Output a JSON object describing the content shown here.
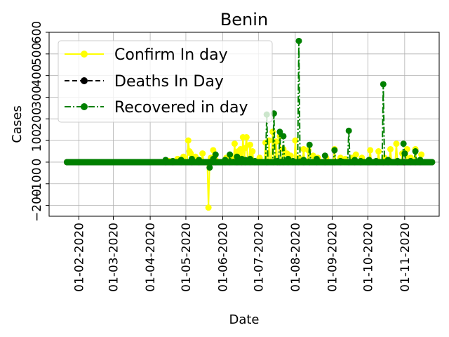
{
  "chart_data": {
    "type": "line",
    "title": "Benin",
    "xlabel": "Date",
    "ylabel": "Cases",
    "x_range": [
      "2020-01-07",
      "2020-11-30"
    ],
    "y_range": [
      -250,
      600
    ],
    "grid": true,
    "legend_position": "top-left",
    "x_ticks": [
      "01-02-2020",
      "01-03-2020",
      "01-04-2020",
      "01-05-2020",
      "01-06-2020",
      "01-07-2020",
      "01-08-2020",
      "01-09-2020",
      "01-10-2020",
      "01-11-2020"
    ],
    "x_tick_dates": [
      "2020-02-01",
      "2020-03-01",
      "2020-04-01",
      "2020-05-01",
      "2020-06-01",
      "2020-07-01",
      "2020-08-01",
      "2020-09-01",
      "2020-10-01",
      "2020-11-01"
    ],
    "y_ticks": [
      -200,
      -100,
      0,
      100,
      200,
      300,
      400,
      500,
      600
    ],
    "y_tick_labels": [
      "−200",
      "−100",
      "0",
      "100",
      "200",
      "300",
      "400",
      "500",
      "600"
    ],
    "dates": {
      "start": "2020-01-22",
      "end": "2020-11-24"
    },
    "series": [
      {
        "name": "Confirm In day",
        "color": "#ffff00",
        "line_style": "solid",
        "points": [
          [
            "2020-04-17",
            5
          ],
          [
            "2020-04-24",
            15
          ],
          [
            "2020-04-29",
            25
          ],
          [
            "2020-05-03",
            100
          ],
          [
            "2020-05-04",
            50
          ],
          [
            "2020-05-05",
            40
          ],
          [
            "2020-05-09",
            25
          ],
          [
            "2020-05-15",
            40
          ],
          [
            "2020-05-20",
            -210
          ],
          [
            "2020-05-22",
            20
          ],
          [
            "2020-05-24",
            55
          ],
          [
            "2020-05-26",
            10
          ],
          [
            "2020-06-04",
            20
          ],
          [
            "2020-06-07",
            30
          ],
          [
            "2020-06-09",
            15
          ],
          [
            "2020-06-11",
            85
          ],
          [
            "2020-06-14",
            50
          ],
          [
            "2020-06-16",
            60
          ],
          [
            "2020-06-18",
            115
          ],
          [
            "2020-06-20",
            65
          ],
          [
            "2020-06-21",
            115
          ],
          [
            "2020-06-24",
            80
          ],
          [
            "2020-06-26",
            50
          ],
          [
            "2020-07-02",
            20
          ],
          [
            "2020-07-07",
            90
          ],
          [
            "2020-07-10",
            100
          ],
          [
            "2020-07-13",
            140
          ],
          [
            "2020-07-16",
            95
          ],
          [
            "2020-07-19",
            120
          ],
          [
            "2020-07-22",
            60
          ],
          [
            "2020-07-25",
            40
          ],
          [
            "2020-07-28",
            30
          ],
          [
            "2020-08-01",
            100
          ],
          [
            "2020-08-04",
            20
          ],
          [
            "2020-08-08",
            60
          ],
          [
            "2020-08-12",
            55
          ],
          [
            "2020-08-16",
            30
          ],
          [
            "2020-08-20",
            20
          ],
          [
            "2020-08-27",
            20
          ],
          [
            "2020-09-03",
            60
          ],
          [
            "2020-09-08",
            20
          ],
          [
            "2020-09-12",
            15
          ],
          [
            "2020-09-18",
            20
          ],
          [
            "2020-09-21",
            35
          ],
          [
            "2020-09-26",
            20
          ],
          [
            "2020-10-03",
            55
          ],
          [
            "2020-10-10",
            50
          ],
          [
            "2020-10-15",
            20
          ],
          [
            "2020-10-20",
            60
          ],
          [
            "2020-10-25",
            85
          ],
          [
            "2020-10-30",
            40
          ],
          [
            "2020-11-03",
            60
          ],
          [
            "2020-11-06",
            20
          ],
          [
            "2020-11-10",
            60
          ],
          [
            "2020-11-15",
            35
          ]
        ]
      },
      {
        "name": "Deaths In Day",
        "color": "#000000",
        "line_style": "dashed",
        "points": [
          [
            "2020-06-10",
            1
          ],
          [
            "2020-07-15",
            2
          ],
          [
            "2020-08-05",
            1
          ],
          [
            "2020-09-10",
            1
          ],
          [
            "2020-10-20",
            2
          ]
        ]
      },
      {
        "name": "Recovered in day",
        "color": "#008000",
        "line_style": "dashdot",
        "points": [
          [
            "2020-04-14",
            10
          ],
          [
            "2020-04-20",
            5
          ],
          [
            "2020-04-27",
            10
          ],
          [
            "2020-05-06",
            15
          ],
          [
            "2020-05-12",
            10
          ],
          [
            "2020-05-21",
            -25
          ],
          [
            "2020-05-24",
            15
          ],
          [
            "2020-05-26",
            35
          ],
          [
            "2020-06-03",
            10
          ],
          [
            "2020-06-07",
            35
          ],
          [
            "2020-06-13",
            25
          ],
          [
            "2020-06-17",
            15
          ],
          [
            "2020-06-20",
            10
          ],
          [
            "2020-06-24",
            15
          ],
          [
            "2020-06-28",
            5
          ],
          [
            "2020-07-08",
            220
          ],
          [
            "2020-07-14",
            225
          ],
          [
            "2020-07-17",
            5
          ],
          [
            "2020-07-19",
            140
          ],
          [
            "2020-07-22",
            120
          ],
          [
            "2020-07-26",
            15
          ],
          [
            "2020-07-30",
            5
          ],
          [
            "2020-08-04",
            560
          ],
          [
            "2020-08-08",
            10
          ],
          [
            "2020-08-13",
            80
          ],
          [
            "2020-08-19",
            15
          ],
          [
            "2020-08-26",
            30
          ],
          [
            "2020-09-03",
            55
          ],
          [
            "2020-09-08",
            5
          ],
          [
            "2020-09-15",
            145
          ],
          [
            "2020-09-20",
            10
          ],
          [
            "2020-09-25",
            5
          ],
          [
            "2020-10-02",
            10
          ],
          [
            "2020-10-08",
            5
          ],
          [
            "2020-10-14",
            360
          ],
          [
            "2020-10-18",
            10
          ],
          [
            "2020-10-26",
            5
          ],
          [
            "2020-10-31",
            85
          ],
          [
            "2020-11-01",
            40
          ],
          [
            "2020-11-06",
            5
          ],
          [
            "2020-11-10",
            50
          ],
          [
            "2020-11-14",
            10
          ]
        ]
      }
    ]
  }
}
